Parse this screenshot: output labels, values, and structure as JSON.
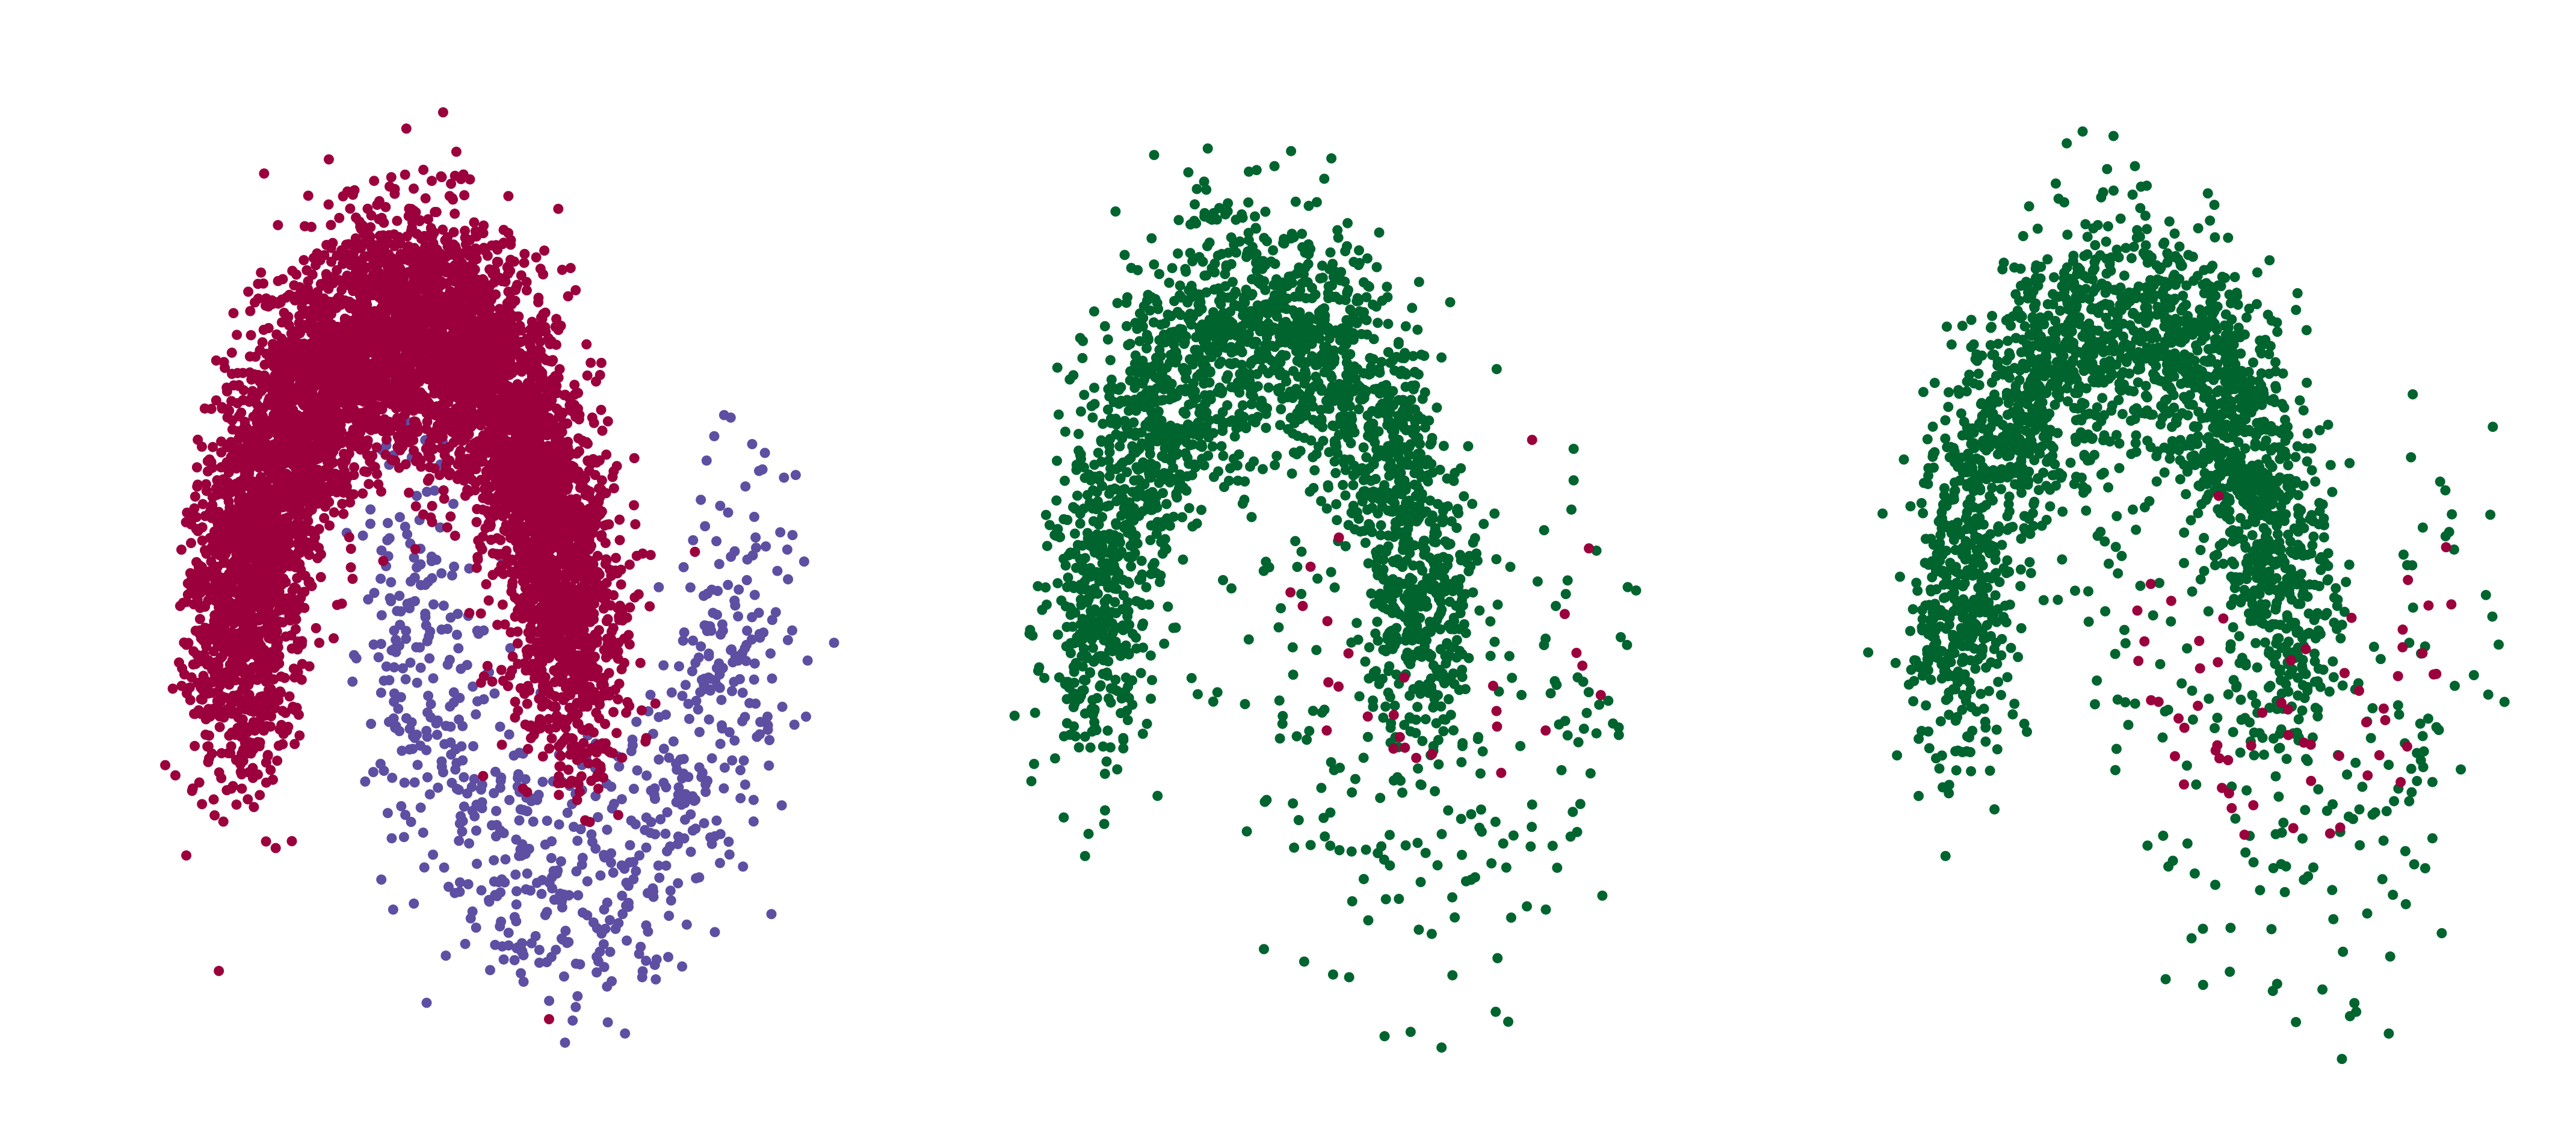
{
  "colors": {
    "majority": "#9b003d",
    "minority": "#5e4fa2",
    "kept": "#00642f",
    "removed": "#9b003d"
  },
  "chart_data": [
    {
      "type": "scatter",
      "grid": false,
      "axes": "off",
      "xlim": [
        -1.6,
        2.6
      ],
      "ylim": [
        -0.95,
        1.45
      ],
      "generator": {
        "seed": 11,
        "majority_count": 6000,
        "minority_count": 700,
        "noise": 0.17
      },
      "series": [
        {
          "class": "majority",
          "color": "#9b003d",
          "shape": "upper moon",
          "center": [
            0,
            0
          ],
          "radius": 1.0,
          "points": 6000
        },
        {
          "class": "minority",
          "color": "#5e4fa2",
          "shape": "lower moon",
          "center": [
            1,
            0.5
          ],
          "radius": 1.0,
          "points": 700
        }
      ],
      "sample_points": [
        [
          -0.85,
          1.42
        ],
        [
          0.15,
          1.4
        ],
        [
          -1.12,
          -0.73
        ],
        [
          1.72,
          0.4
        ],
        [
          0.85,
          -0.86
        ]
      ]
    },
    {
      "type": "scatter",
      "grid": false,
      "axes": "off",
      "xlim": [
        -1.6,
        2.6
      ],
      "ylim": [
        -0.95,
        1.45
      ],
      "generator": {
        "seed": 23,
        "kept_count": 2400,
        "removed_count": 28,
        "noise": 0.17
      },
      "series": [
        {
          "class": "kept",
          "color": "#00642f",
          "shape": "upper moon",
          "points": 2400
        },
        {
          "class": "removed",
          "color": "#9b003d",
          "shape": "inner region",
          "points": 28
        }
      ],
      "sample_points": [
        [
          0.08,
          1.44
        ],
        [
          -1.05,
          -0.42
        ],
        [
          1.65,
          0.32
        ],
        [
          1.4,
          -0.84
        ],
        [
          0.55,
          0.58
        ]
      ]
    },
    {
      "type": "scatter",
      "grid": false,
      "axes": "off",
      "xlim": [
        -1.6,
        2.6
      ],
      "ylim": [
        -0.95,
        1.45
      ],
      "generator": {
        "seed": 37,
        "kept_count": 2400,
        "removed_count": 60,
        "noise": 0.17
      },
      "series": [
        {
          "class": "kept",
          "color": "#00642f",
          "shape": "upper moon",
          "points": 2400
        },
        {
          "class": "removed",
          "color": "#9b003d",
          "shape": "inner region",
          "points": 60
        }
      ],
      "sample_points": [
        [
          0.08,
          1.44
        ],
        [
          -1.05,
          -0.42
        ],
        [
          2.25,
          0.15
        ],
        [
          1.4,
          -0.84
        ],
        [
          2.2,
          0.5
        ]
      ]
    }
  ]
}
